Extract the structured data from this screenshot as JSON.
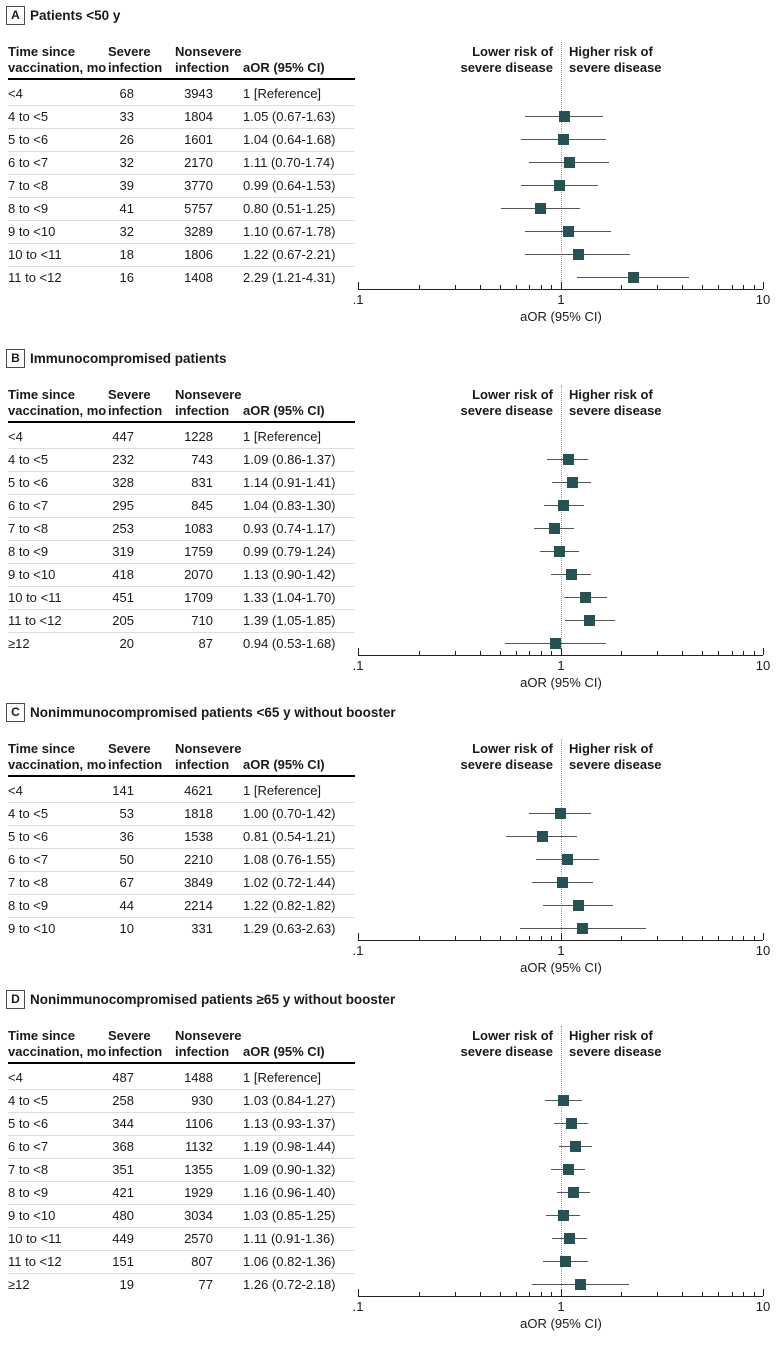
{
  "figure_name": "Forest plots of adjusted odds ratios for severe disease by time since vaccination",
  "colors": {
    "marker": "#275253",
    "ci_line": "#555555",
    "axis": "#222222",
    "reference_line": "#9a9a9a",
    "header_rule": "#000000",
    "row_separator": "#dedede",
    "text": "#1a1a1a"
  },
  "columns": [
    {
      "line1": "Time since",
      "line2": "vaccination, mo"
    },
    {
      "line1": "Severe",
      "line2": "infection"
    },
    {
      "line1": "Nonsevere",
      "line2": "infection"
    },
    {
      "line1": "aOR (95% CI)",
      "line2": ""
    }
  ],
  "risk_labels": {
    "left": [
      "Lower risk of",
      "severe disease"
    ],
    "right": [
      "Higher risk of",
      "severe disease"
    ]
  },
  "axis": {
    "tick_labels": [
      ".1",
      "1",
      "10"
    ],
    "major_ticks": [
      0.1,
      1,
      10
    ],
    "minor_ticks": [
      0.2,
      0.3,
      0.4,
      0.5,
      0.6,
      0.7,
      0.8,
      0.9,
      2,
      3,
      4,
      5,
      6,
      7,
      8,
      9
    ],
    "xlabel": "aOR (95% CI)"
  },
  "chart_data": [
    {
      "type": "scatter",
      "subtype": "forest-plot",
      "panel_letter": "A",
      "title": "Patients <50 y",
      "x_scale": "log",
      "xlim": [
        0.1,
        10
      ],
      "reference_line": 1,
      "xlabel": "aOR (95% CI)",
      "rows": [
        {
          "time": "<4",
          "severe": "68",
          "nonsevere": "3943",
          "aor_text": "1 [Reference]",
          "est": null,
          "lo": null,
          "hi": null
        },
        {
          "time": "4 to <5",
          "severe": "33",
          "nonsevere": "1804",
          "aor_text": "1.05 (0.67-1.63)",
          "est": 1.05,
          "lo": 0.67,
          "hi": 1.63
        },
        {
          "time": "5 to <6",
          "severe": "26",
          "nonsevere": "1601",
          "aor_text": "1.04 (0.64-1.68)",
          "est": 1.04,
          "lo": 0.64,
          "hi": 1.68
        },
        {
          "time": "6 to <7",
          "severe": "32",
          "nonsevere": "2170",
          "aor_text": "1.11 (0.70-1.74)",
          "est": 1.11,
          "lo": 0.7,
          "hi": 1.74
        },
        {
          "time": "7 to <8",
          "severe": "39",
          "nonsevere": "3770",
          "aor_text": "0.99 (0.64-1.53)",
          "est": 0.99,
          "lo": 0.64,
          "hi": 1.53
        },
        {
          "time": "8 to <9",
          "severe": "41",
          "nonsevere": "5757",
          "aor_text": "0.80 (0.51-1.25)",
          "est": 0.8,
          "lo": 0.51,
          "hi": 1.25
        },
        {
          "time": "9 to <10",
          "severe": "32",
          "nonsevere": "3289",
          "aor_text": "1.10 (0.67-1.78)",
          "est": 1.1,
          "lo": 0.67,
          "hi": 1.78
        },
        {
          "time": "10 to <11",
          "severe": "18",
          "nonsevere": "1806",
          "aor_text": "1.22 (0.67-2.21)",
          "est": 1.22,
          "lo": 0.67,
          "hi": 2.21
        },
        {
          "time": "11 to <12",
          "severe": "16",
          "nonsevere": "1408",
          "aor_text": "2.29 (1.21-4.31)",
          "est": 2.29,
          "lo": 1.21,
          "hi": 4.31
        }
      ]
    },
    {
      "type": "scatter",
      "subtype": "forest-plot",
      "panel_letter": "B",
      "title": "Immunocompromised patients",
      "x_scale": "log",
      "xlim": [
        0.1,
        10
      ],
      "reference_line": 1,
      "xlabel": "aOR (95% CI)",
      "rows": [
        {
          "time": "<4",
          "severe": "447",
          "nonsevere": "1228",
          "aor_text": "1 [Reference]",
          "est": null,
          "lo": null,
          "hi": null
        },
        {
          "time": "4 to <5",
          "severe": "232",
          "nonsevere": "743",
          "aor_text": "1.09 (0.86-1.37)",
          "est": 1.09,
          "lo": 0.86,
          "hi": 1.37
        },
        {
          "time": "5 to <6",
          "severe": "328",
          "nonsevere": "831",
          "aor_text": "1.14 (0.91-1.41)",
          "est": 1.14,
          "lo": 0.91,
          "hi": 1.41
        },
        {
          "time": "6 to <7",
          "severe": "295",
          "nonsevere": "845",
          "aor_text": "1.04 (0.83-1.30)",
          "est": 1.04,
          "lo": 0.83,
          "hi": 1.3
        },
        {
          "time": "7 to <8",
          "severe": "253",
          "nonsevere": "1083",
          "aor_text": "0.93 (0.74-1.17)",
          "est": 0.93,
          "lo": 0.74,
          "hi": 1.17
        },
        {
          "time": "8 to <9",
          "severe": "319",
          "nonsevere": "1759",
          "aor_text": "0.99 (0.79-1.24)",
          "est": 0.99,
          "lo": 0.79,
          "hi": 1.24
        },
        {
          "time": "9 to <10",
          "severe": "418",
          "nonsevere": "2070",
          "aor_text": "1.13 (0.90-1.42)",
          "est": 1.13,
          "lo": 0.9,
          "hi": 1.42
        },
        {
          "time": "10 to <11",
          "severe": "451",
          "nonsevere": "1709",
          "aor_text": "1.33 (1.04-1.70)",
          "est": 1.33,
          "lo": 1.04,
          "hi": 1.7
        },
        {
          "time": "11 to <12",
          "severe": "205",
          "nonsevere": "710",
          "aor_text": "1.39 (1.05-1.85)",
          "est": 1.39,
          "lo": 1.05,
          "hi": 1.85
        },
        {
          "time": "≥12",
          "severe": "20",
          "nonsevere": "87",
          "aor_text": "0.94 (0.53-1.68)",
          "est": 0.94,
          "lo": 0.53,
          "hi": 1.68
        }
      ]
    },
    {
      "type": "scatter",
      "subtype": "forest-plot",
      "panel_letter": "C",
      "title": "Nonimmunocompromised patients <65 y without booster",
      "x_scale": "log",
      "xlim": [
        0.1,
        10
      ],
      "reference_line": 1,
      "xlabel": "aOR (95% CI)",
      "rows": [
        {
          "time": "<4",
          "severe": "141",
          "nonsevere": "4621",
          "aor_text": "1 [Reference]",
          "est": null,
          "lo": null,
          "hi": null
        },
        {
          "time": "4 to <5",
          "severe": "53",
          "nonsevere": "1818",
          "aor_text": "1.00 (0.70-1.42)",
          "est": 1.0,
          "lo": 0.7,
          "hi": 1.42
        },
        {
          "time": "5 to <6",
          "severe": "36",
          "nonsevere": "1538",
          "aor_text": "0.81 (0.54-1.21)",
          "est": 0.81,
          "lo": 0.54,
          "hi": 1.21
        },
        {
          "time": "6 to <7",
          "severe": "50",
          "nonsevere": "2210",
          "aor_text": "1.08 (0.76-1.55)",
          "est": 1.08,
          "lo": 0.76,
          "hi": 1.55
        },
        {
          "time": "7 to <8",
          "severe": "67",
          "nonsevere": "3849",
          "aor_text": "1.02 (0.72-1.44)",
          "est": 1.02,
          "lo": 0.72,
          "hi": 1.44
        },
        {
          "time": "8 to <9",
          "severe": "44",
          "nonsevere": "2214",
          "aor_text": "1.22 (0.82-1.82)",
          "est": 1.22,
          "lo": 0.82,
          "hi": 1.82
        },
        {
          "time": "9 to <10",
          "severe": "10",
          "nonsevere": "331",
          "aor_text": "1.29 (0.63-2.63)",
          "est": 1.29,
          "lo": 0.63,
          "hi": 2.63
        }
      ]
    },
    {
      "type": "scatter",
      "subtype": "forest-plot",
      "panel_letter": "D",
      "title": "Nonimmunocompromised patients ≥65 y without booster",
      "x_scale": "log",
      "xlim": [
        0.1,
        10
      ],
      "reference_line": 1,
      "xlabel": "aOR (95% CI)",
      "rows": [
        {
          "time": "<4",
          "severe": "487",
          "nonsevere": "1488",
          "aor_text": "1 [Reference]",
          "est": null,
          "lo": null,
          "hi": null
        },
        {
          "time": "4 to <5",
          "severe": "258",
          "nonsevere": "930",
          "aor_text": "1.03 (0.84-1.27)",
          "est": 1.03,
          "lo": 0.84,
          "hi": 1.27
        },
        {
          "time": "5 to <6",
          "severe": "344",
          "nonsevere": "1106",
          "aor_text": "1.13 (0.93-1.37)",
          "est": 1.13,
          "lo": 0.93,
          "hi": 1.37
        },
        {
          "time": "6 to <7",
          "severe": "368",
          "nonsevere": "1132",
          "aor_text": "1.19 (0.98-1.44)",
          "est": 1.19,
          "lo": 0.98,
          "hi": 1.44
        },
        {
          "time": "7 to <8",
          "severe": "351",
          "nonsevere": "1355",
          "aor_text": "1.09 (0.90-1.32)",
          "est": 1.09,
          "lo": 0.9,
          "hi": 1.32
        },
        {
          "time": "8 to <9",
          "severe": "421",
          "nonsevere": "1929",
          "aor_text": "1.16 (0.96-1.40)",
          "est": 1.16,
          "lo": 0.96,
          "hi": 1.4
        },
        {
          "time": "9 to <10",
          "severe": "480",
          "nonsevere": "3034",
          "aor_text": "1.03 (0.85-1.25)",
          "est": 1.03,
          "lo": 0.85,
          "hi": 1.25
        },
        {
          "time": "10 to <11",
          "severe": "449",
          "nonsevere": "2570",
          "aor_text": "1.11 (0.91-1.36)",
          "est": 1.11,
          "lo": 0.91,
          "hi": 1.36
        },
        {
          "time": "11 to <12",
          "severe": "151",
          "nonsevere": "807",
          "aor_text": "1.06 (0.82-1.36)",
          "est": 1.06,
          "lo": 0.82,
          "hi": 1.36
        },
        {
          "time": "≥12",
          "severe": "19",
          "nonsevere": "77",
          "aor_text": "1.26 (0.72-2.18)",
          "est": 1.26,
          "lo": 0.72,
          "hi": 2.18
        }
      ]
    }
  ]
}
